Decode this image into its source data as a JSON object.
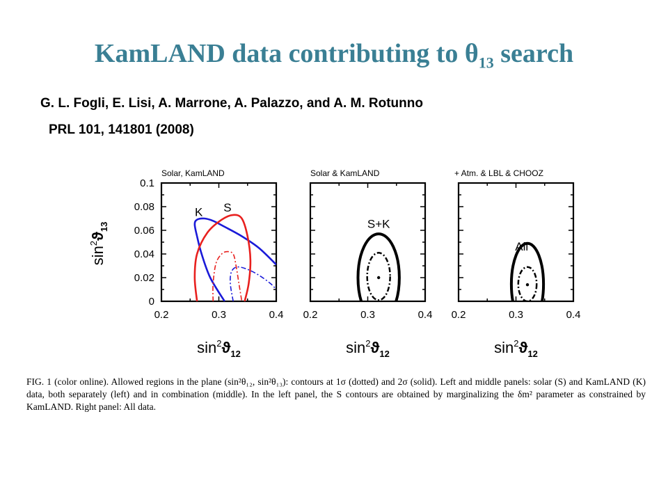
{
  "slide": {
    "title": "KamLAND data contributing to θ",
    "title_sub": "13",
    "title_tail": " search",
    "authors": "G. L. Fogli, E. Lisi, A. Marrone, A. Palazzo, and A. M. Rotunno",
    "citation": "PRL 101, 141801 (2008)"
  },
  "figure": {
    "panels": [
      {
        "header": "Solar,   KamLAND",
        "xlabel_main": "sin",
        "xlabel_sup": "2",
        "xlabel_sym": "ϑ",
        "xlabel_sub": "12"
      },
      {
        "header": "Solar  &  KamLAND",
        "xlabel_main": "sin",
        "xlabel_sup": "2",
        "xlabel_sym": "ϑ",
        "xlabel_sub": "12"
      },
      {
        "header": "+  Atm.  &  LBL  &  CHOOZ",
        "xlabel_main": "sin",
        "xlabel_sup": "2",
        "xlabel_sym": "ϑ",
        "xlabel_sub": "12"
      }
    ],
    "ylabel_main": "sin",
    "ylabel_sup": "2",
    "ylabel_sym": "ϑ",
    "ylabel_sub": "13",
    "y_ticks": [
      "0.1",
      "0.08",
      "0.06",
      "0.04",
      "0.02",
      "0"
    ],
    "x_ticks": [
      "0.2",
      "0.3",
      "0.4"
    ],
    "curve_labels": {
      "k": "K",
      "s": "S",
      "sk": "S+K",
      "all": "All"
    },
    "colors": {
      "solar": "#e8201e",
      "kamland": "#1a1ad8",
      "combined": "#000000",
      "title": "#3a7f94"
    }
  },
  "caption": {
    "label": "FIG. 1 (color online).",
    "text": "Allowed regions in the plane (sin²θ₁₂, sin²θ₁₃): contours at 1σ (dotted) and 2σ (solid). Left and middle panels: solar (S) and KamLAND (K) data, both separately (left) and in combination (middle). In the left panel, the S contours are obtained by marginalizing the δm² parameter as constrained by KamLAND. Right panel: All data."
  },
  "chart_data": [
    {
      "type": "line",
      "title": "Solar,   KamLAND",
      "xlabel": "sin² ϑ₁₂",
      "ylabel": "sin² ϑ₁₃",
      "xlim": [
        0.2,
        0.4
      ],
      "ylim": [
        0,
        0.1
      ],
      "series": [
        {
          "name": "K",
          "style": "solid",
          "color": "#1a1ad8",
          "x": [
            0.31,
            0.285,
            0.27,
            0.262,
            0.258,
            0.262,
            0.275,
            0.29,
            0.31,
            0.34,
            0.37,
            0.4
          ],
          "y": [
            0,
            0.02,
            0.04,
            0.055,
            0.065,
            0.069,
            0.07,
            0.068,
            0.063,
            0.055,
            0.045,
            0.031
          ]
        },
        {
          "name": "S",
          "style": "solid",
          "color": "#e8201e",
          "x": [
            0.262,
            0.258,
            0.262,
            0.28,
            0.305,
            0.325,
            0.34,
            0.35,
            0.355,
            0.352,
            0.345
          ],
          "y": [
            0,
            0.02,
            0.04,
            0.058,
            0.069,
            0.073,
            0.07,
            0.055,
            0.035,
            0.015,
            0
          ]
        },
        {
          "name": "",
          "style": "dotted",
          "color": "#e8201e",
          "x": [
            0.29,
            0.29,
            0.295,
            0.305,
            0.315,
            0.325,
            0.33,
            0.335,
            0.34
          ],
          "y": [
            0,
            0.015,
            0.032,
            0.04,
            0.042,
            0.04,
            0.03,
            0.015,
            0
          ]
        },
        {
          "name": "",
          "style": "dotted",
          "color": "#1a1ad8",
          "x": [
            0.325,
            0.32,
            0.322,
            0.332,
            0.35,
            0.37,
            0.39,
            0.4
          ],
          "y": [
            0,
            0.015,
            0.025,
            0.029,
            0.027,
            0.022,
            0.015,
            0.01
          ]
        }
      ]
    },
    {
      "type": "line",
      "title": "Solar  &  KamLAND",
      "xlabel": "sin² ϑ₁₂",
      "ylabel": "sin² ϑ₁₃",
      "xlim": [
        0.2,
        0.4
      ],
      "ylim": [
        0,
        0.1
      ],
      "series": [
        {
          "name": "S+K",
          "style": "solid",
          "color": "#000000",
          "ellipse": {
            "cx": 0.319,
            "cy": 0.02,
            "rx": 0.036,
            "ry": 0.037
          }
        },
        {
          "name": "",
          "style": "dotted",
          "color": "#000000",
          "ellipse": {
            "cx": 0.319,
            "cy": 0.021,
            "rx": 0.02,
            "ry": 0.02
          }
        }
      ],
      "best_fit": {
        "x": 0.319,
        "y": 0.02
      }
    },
    {
      "type": "line",
      "title": "+  Atm.  &  LBL  &  CHOOZ",
      "xlabel": "sin² ϑ₁₂",
      "ylabel": "sin² ϑ₁₃",
      "xlim": [
        0.2,
        0.4
      ],
      "ylim": [
        0,
        0.1
      ],
      "series": [
        {
          "name": "All",
          "style": "solid",
          "color": "#000000",
          "ellipse": {
            "cx": 0.32,
            "cy": 0.0145,
            "rx": 0.028,
            "ry": 0.0345
          }
        },
        {
          "name": "",
          "style": "dotted",
          "color": "#000000",
          "ellipse": {
            "cx": 0.32,
            "cy": 0.0145,
            "rx": 0.016,
            "ry": 0.0145
          }
        }
      ],
      "best_fit": {
        "x": 0.32,
        "y": 0.014
      }
    }
  ]
}
